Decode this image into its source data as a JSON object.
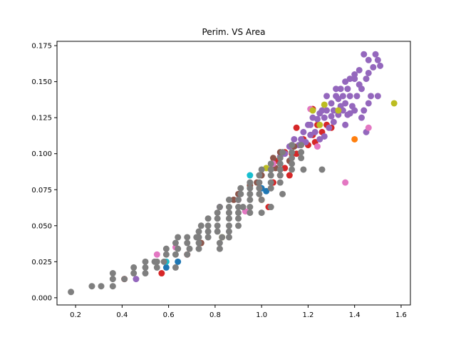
{
  "chart_data": {
    "type": "scatter",
    "title": "Perim. VS Area",
    "xlabel": "",
    "ylabel": "",
    "xlim": [
      0.12,
      1.64
    ],
    "ylim": [
      -0.005,
      0.178
    ],
    "xticks": [
      {
        "value": 0.2,
        "label": "0.2"
      },
      {
        "value": 0.4,
        "label": "0.4"
      },
      {
        "value": 0.6,
        "label": "0.6"
      },
      {
        "value": 0.8,
        "label": "0.8"
      },
      {
        "value": 1.0,
        "label": "1.0"
      },
      {
        "value": 1.2,
        "label": "1.2"
      },
      {
        "value": 1.4,
        "label": "1.4"
      },
      {
        "value": 1.6,
        "label": "1.6"
      }
    ],
    "yticks": [
      {
        "value": 0.0,
        "label": "0.000"
      },
      {
        "value": 0.025,
        "label": "0.025"
      },
      {
        "value": 0.05,
        "label": "0.050"
      },
      {
        "value": 0.075,
        "label": "0.075"
      },
      {
        "value": 0.1,
        "label": "0.100"
      },
      {
        "value": 0.125,
        "label": "0.125"
      },
      {
        "value": 0.15,
        "label": "0.150"
      },
      {
        "value": 0.175,
        "label": "0.175"
      }
    ],
    "grid": false,
    "series": [
      {
        "color": "#1f77b4",
        "points": [
          [
            0.59,
            0.021
          ],
          [
            0.64,
            0.025
          ],
          [
            1.0,
            0.076
          ],
          [
            1.02,
            0.074
          ]
        ]
      },
      {
        "color": "#ff7f0e",
        "points": [
          [
            1.0,
            0.068
          ],
          [
            1.4,
            0.11
          ]
        ]
      },
      {
        "color": "#d62728",
        "points": [
          [
            0.41,
            0.013
          ],
          [
            0.57,
            0.017
          ],
          [
            0.68,
            0.03
          ],
          [
            1.03,
            0.063
          ],
          [
            1.05,
            0.08
          ],
          [
            1.08,
            0.085
          ],
          [
            1.1,
            0.09
          ],
          [
            1.12,
            0.085
          ],
          [
            1.13,
            0.1
          ],
          [
            1.15,
            0.1
          ],
          [
            1.18,
            0.11
          ],
          [
            1.2,
            0.106
          ],
          [
            1.22,
            0.113
          ],
          [
            1.24,
            0.12
          ],
          [
            1.26,
            0.115
          ],
          [
            1.3,
            0.118
          ],
          [
            1.28,
            0.12
          ],
          [
            1.22,
            0.131
          ],
          [
            1.15,
            0.118
          ],
          [
            1.1,
            0.101
          ],
          [
            1.07,
            0.095
          ],
          [
            1.23,
            0.108
          ]
        ]
      },
      {
        "color": "#9467bd",
        "points": [
          [
            0.46,
            0.013
          ],
          [
            0.82,
            0.063
          ],
          [
            1.16,
            0.106
          ],
          [
            1.2,
            0.12
          ],
          [
            1.22,
            0.125
          ],
          [
            1.25,
            0.128
          ],
          [
            1.28,
            0.13
          ],
          [
            1.3,
            0.135
          ],
          [
            1.32,
            0.14
          ],
          [
            1.34,
            0.145
          ],
          [
            1.36,
            0.15
          ],
          [
            1.38,
            0.152
          ],
          [
            1.4,
            0.155
          ],
          [
            1.42,
            0.158
          ],
          [
            1.44,
            0.169
          ],
          [
            1.46,
            0.165
          ],
          [
            1.48,
            0.16
          ],
          [
            1.5,
            0.165
          ],
          [
            1.49,
            0.169
          ],
          [
            1.51,
            0.161
          ],
          [
            1.45,
            0.152
          ],
          [
            1.43,
            0.145
          ],
          [
            1.41,
            0.14
          ],
          [
            1.39,
            0.133
          ],
          [
            1.37,
            0.127
          ],
          [
            1.35,
            0.13
          ],
          [
            1.33,
            0.127
          ],
          [
            1.31,
            0.122
          ],
          [
            1.29,
            0.118
          ],
          [
            1.27,
            0.112
          ],
          [
            1.25,
            0.11
          ],
          [
            1.23,
            0.115
          ],
          [
            1.21,
            0.113
          ],
          [
            1.19,
            0.108
          ],
          [
            1.17,
            0.11
          ],
          [
            1.46,
            0.135
          ],
          [
            1.47,
            0.14
          ],
          [
            1.44,
            0.13
          ],
          [
            1.45,
            0.115
          ],
          [
            1.26,
            0.13
          ],
          [
            1.38,
            0.14
          ],
          [
            1.36,
            0.135
          ],
          [
            1.34,
            0.133
          ],
          [
            1.42,
            0.148
          ],
          [
            1.4,
            0.152
          ],
          [
            1.37,
            0.145
          ],
          [
            1.35,
            0.14
          ],
          [
            1.33,
            0.138
          ],
          [
            1.31,
            0.13
          ],
          [
            1.27,
            0.125
          ],
          [
            1.24,
            0.124
          ],
          [
            1.21,
            0.12
          ],
          [
            1.18,
            0.115
          ],
          [
            1.14,
            0.11
          ],
          [
            1.12,
            0.105
          ],
          [
            1.1,
            0.1
          ],
          [
            1.08,
            0.098
          ],
          [
            1.32,
            0.145
          ],
          [
            1.28,
            0.14
          ],
          [
            1.4,
            0.13
          ],
          [
            1.43,
            0.125
          ],
          [
            1.38,
            0.128
          ],
          [
            1.36,
            0.12
          ],
          [
            1.3,
            0.126
          ],
          [
            1.46,
            0.156
          ],
          [
            1.5,
            0.14
          ]
        ]
      },
      {
        "color": "#8c564b",
        "points": [
          [
            0.74,
            0.038
          ],
          [
            0.9,
            0.072
          ],
          [
            0.98,
            0.08
          ],
          [
            1.05,
            0.097
          ],
          [
            1.08,
            0.101
          ],
          [
            1.12,
            0.095
          ],
          [
            1.06,
            0.09
          ],
          [
            1.0,
            0.085
          ],
          [
            0.95,
            0.078
          ],
          [
            0.88,
            0.068
          ],
          [
            1.14,
            0.105
          ]
        ]
      },
      {
        "color": "#e377c2",
        "points": [
          [
            0.55,
            0.03
          ],
          [
            0.63,
            0.035
          ],
          [
            0.9,
            0.068
          ],
          [
            1.05,
            0.093
          ],
          [
            1.21,
            0.131
          ],
          [
            1.36,
            0.08
          ],
          [
            1.46,
            0.118
          ],
          [
            1.24,
            0.105
          ],
          [
            0.93,
            0.06
          ]
        ]
      },
      {
        "color": "#bcbd22",
        "points": [
          [
            0.83,
            0.042
          ],
          [
            1.02,
            0.09
          ],
          [
            1.22,
            0.13
          ],
          [
            1.27,
            0.134
          ],
          [
            1.57,
            0.135
          ],
          [
            1.33,
            0.13
          ],
          [
            1.25,
            0.12
          ]
        ]
      },
      {
        "color": "#17becf",
        "points": [
          [
            0.59,
            0.025
          ],
          [
            0.95,
            0.085
          ]
        ]
      },
      {
        "color": "#7f7f7f",
        "points": [
          [
            0.18,
            0.004
          ],
          [
            0.27,
            0.008
          ],
          [
            0.31,
            0.008
          ],
          [
            0.36,
            0.008
          ],
          [
            0.36,
            0.013
          ],
          [
            0.36,
            0.017
          ],
          [
            0.41,
            0.013
          ],
          [
            0.45,
            0.017
          ],
          [
            0.45,
            0.021
          ],
          [
            0.5,
            0.017
          ],
          [
            0.5,
            0.021
          ],
          [
            0.5,
            0.025
          ],
          [
            0.55,
            0.021
          ],
          [
            0.55,
            0.025
          ],
          [
            0.59,
            0.03
          ],
          [
            0.59,
            0.034
          ],
          [
            0.63,
            0.03
          ],
          [
            0.63,
            0.038
          ],
          [
            0.64,
            0.034
          ],
          [
            0.68,
            0.038
          ],
          [
            0.68,
            0.042
          ],
          [
            0.69,
            0.034
          ],
          [
            0.73,
            0.038
          ],
          [
            0.73,
            0.042
          ],
          [
            0.73,
            0.046
          ],
          [
            0.74,
            0.05
          ],
          [
            0.77,
            0.046
          ],
          [
            0.77,
            0.05
          ],
          [
            0.77,
            0.055
          ],
          [
            0.81,
            0.046
          ],
          [
            0.81,
            0.05
          ],
          [
            0.81,
            0.055
          ],
          [
            0.81,
            0.059
          ],
          [
            0.82,
            0.063
          ],
          [
            0.86,
            0.05
          ],
          [
            0.86,
            0.055
          ],
          [
            0.86,
            0.059
          ],
          [
            0.86,
            0.063
          ],
          [
            0.86,
            0.068
          ],
          [
            0.9,
            0.055
          ],
          [
            0.9,
            0.059
          ],
          [
            0.9,
            0.063
          ],
          [
            0.9,
            0.068
          ],
          [
            0.91,
            0.072
          ],
          [
            0.91,
            0.076
          ],
          [
            0.95,
            0.063
          ],
          [
            0.95,
            0.068
          ],
          [
            0.95,
            0.072
          ],
          [
            0.95,
            0.076
          ],
          [
            0.95,
            0.08
          ],
          [
            0.99,
            0.072
          ],
          [
            0.99,
            0.076
          ],
          [
            0.99,
            0.08
          ],
          [
            0.99,
            0.085
          ],
          [
            1.0,
            0.089
          ],
          [
            1.04,
            0.076
          ],
          [
            1.04,
            0.08
          ],
          [
            1.04,
            0.085
          ],
          [
            1.04,
            0.089
          ],
          [
            1.04,
            0.093
          ],
          [
            1.08,
            0.085
          ],
          [
            1.08,
            0.089
          ],
          [
            1.08,
            0.093
          ],
          [
            1.08,
            0.097
          ],
          [
            1.09,
            0.101
          ],
          [
            1.09,
            0.072
          ],
          [
            1.13,
            0.093
          ],
          [
            1.13,
            0.097
          ],
          [
            1.13,
            0.101
          ],
          [
            1.13,
            0.106
          ],
          [
            1.17,
            0.101
          ],
          [
            1.17,
            0.106
          ],
          [
            1.18,
            0.089
          ],
          [
            1.26,
            0.089
          ],
          [
            0.83,
            0.042
          ],
          [
            0.92,
            0.063
          ],
          [
            1.0,
            0.068
          ],
          [
            1.13,
            0.089
          ],
          [
            0.72,
            0.042
          ],
          [
            0.77,
            0.042
          ],
          [
            0.54,
            0.025
          ],
          [
            0.63,
            0.021
          ],
          [
            0.58,
            0.025
          ],
          [
            0.68,
            0.03
          ],
          [
            0.82,
            0.034
          ],
          [
            0.82,
            0.038
          ],
          [
            0.86,
            0.042
          ],
          [
            0.86,
            0.046
          ],
          [
            0.9,
            0.05
          ],
          [
            0.95,
            0.059
          ],
          [
            1.0,
            0.059
          ],
          [
            1.04,
            0.063
          ],
          [
            1.08,
            0.08
          ],
          [
            1.17,
            0.097
          ],
          [
            0.73,
            0.034
          ],
          [
            0.64,
            0.042
          ]
        ]
      }
    ]
  }
}
